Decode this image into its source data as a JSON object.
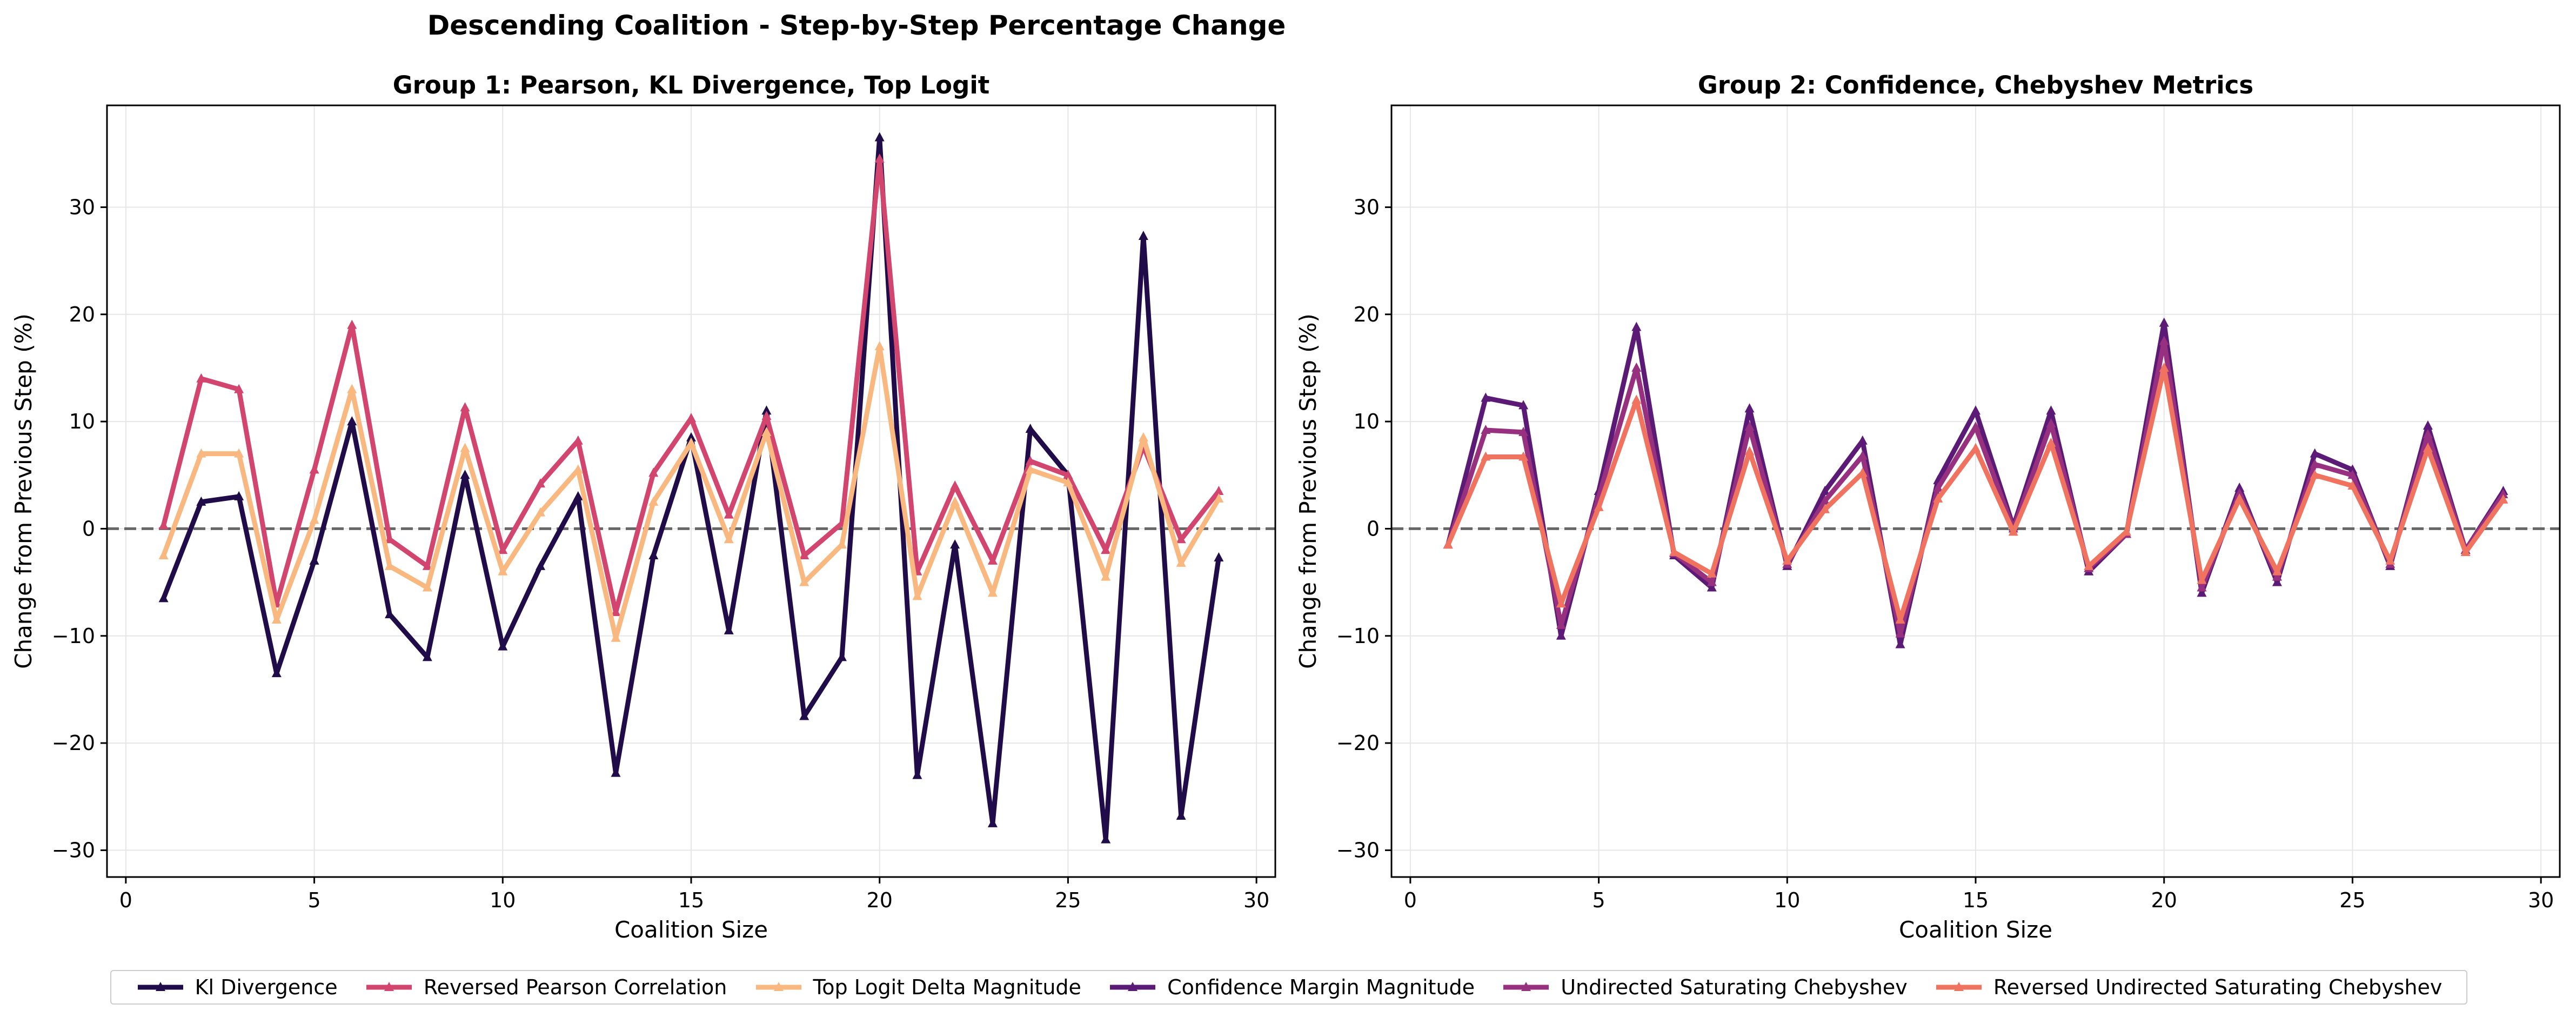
{
  "figure_title": "Descending Coalition - Step-by-Step Percentage Change",
  "colors": {
    "kl": "#1f0c48",
    "pearson": "#d1456f",
    "toplogit": "#f9b87f",
    "confidence": "#5b1a76",
    "undirected": "#97307f",
    "reversed_undirected": "#f0735f",
    "zero_line": "#666666",
    "grid": "#e6e6e6"
  },
  "legend": {
    "items": [
      {
        "label": "Kl Divergence",
        "color": "#1f0c48"
      },
      {
        "label": "Reversed Pearson Correlation",
        "color": "#d1456f"
      },
      {
        "label": "Top Logit Delta Magnitude",
        "color": "#f9b87f"
      },
      {
        "label": "Confidence Margin Magnitude",
        "color": "#5b1a76"
      },
      {
        "label": "Undirected Saturating Chebyshev",
        "color": "#97307f"
      },
      {
        "label": "Reversed Undirected Saturating Chebyshev",
        "color": "#f0735f"
      }
    ]
  },
  "chart_data": [
    {
      "type": "line",
      "title": "Group 1: Pearson, KL Divergence, Top Logit",
      "xlabel": "Coalition Size",
      "ylabel": "Change from Previous Step (%)",
      "xlim": [
        -0.5,
        30.5
      ],
      "ylim": [
        -32.5,
        39.5
      ],
      "xticks": [
        0,
        5,
        10,
        15,
        20,
        25,
        30
      ],
      "yticks": [
        -30,
        -20,
        -10,
        0,
        10,
        20,
        30
      ],
      "grid": true,
      "zero_line": 0,
      "x": [
        1,
        2,
        3,
        4,
        5,
        6,
        7,
        8,
        9,
        10,
        11,
        12,
        13,
        14,
        15,
        16,
        17,
        18,
        19,
        20,
        21,
        22,
        23,
        24,
        25,
        26,
        27,
        28,
        29
      ],
      "series": [
        {
          "name": "Kl Divergence",
          "color": "#1f0c48",
          "values": [
            -6.5,
            2.5,
            3,
            -13.5,
            -3,
            10,
            -8,
            -12,
            5,
            -11,
            -3.5,
            3,
            -22.8,
            -2.5,
            8.5,
            -9.5,
            11,
            -17.5,
            -12,
            36.5,
            -23,
            -1.5,
            -27.5,
            9.3,
            5,
            -29,
            27.3,
            -26.8,
            -2.7
          ]
        },
        {
          "name": "Reversed Pearson Correlation",
          "color": "#d1456f",
          "values": [
            0.3,
            14,
            13,
            -7,
            5.5,
            19,
            -1,
            -3.5,
            11.3,
            -2,
            4.2,
            8.2,
            -7.8,
            5.2,
            10.3,
            1.3,
            10.5,
            -2.5,
            0.5,
            34.5,
            -4,
            4,
            -3,
            6.3,
            5,
            -2,
            7.7,
            -1,
            3.5
          ]
        },
        {
          "name": "Top Logit Delta Magnitude",
          "color": "#f9b87f",
          "values": [
            -2.5,
            7,
            7,
            -8.5,
            0.8,
            13,
            -3.5,
            -5.5,
            7.5,
            -4,
            1.5,
            5.5,
            -10.2,
            2.5,
            8,
            -1,
            9,
            -5,
            -1.5,
            17,
            -6.3,
            2.5,
            -6,
            5.5,
            4.3,
            -4.5,
            8.5,
            -3.2,
            2.8
          ]
        }
      ]
    },
    {
      "type": "line",
      "title": "Group 2: Confidence, Chebyshev Metrics",
      "xlabel": "Coalition Size",
      "ylabel": "Change from Previous Step (%)",
      "xlim": [
        -0.5,
        30.5
      ],
      "ylim": [
        -32.5,
        39.5
      ],
      "xticks": [
        0,
        5,
        10,
        15,
        20,
        25,
        30
      ],
      "yticks": [
        -30,
        -20,
        -10,
        0,
        10,
        20,
        30
      ],
      "grid": true,
      "zero_line": 0,
      "x": [
        1,
        2,
        3,
        4,
        5,
        6,
        7,
        8,
        9,
        10,
        11,
        12,
        13,
        14,
        15,
        16,
        17,
        18,
        19,
        20,
        21,
        22,
        23,
        24,
        25,
        26,
        27,
        28,
        29
      ],
      "series": [
        {
          "name": "Confidence Margin Magnitude",
          "color": "#5b1a76",
          "values": [
            -1.5,
            12.2,
            11.5,
            -10,
            3.5,
            18.8,
            -2.5,
            -5.5,
            11.2,
            -3.5,
            3.5,
            8.2,
            -10.8,
            4.5,
            11,
            0.2,
            11,
            -4,
            -0.5,
            19.2,
            -6,
            3.8,
            -5,
            7,
            5.5,
            -3.5,
            9.6,
            -2,
            3.5
          ]
        },
        {
          "name": "Undirected Saturating Chebyshev",
          "color": "#97307f",
          "values": [
            -1.5,
            9.2,
            9,
            -9,
            3,
            15,
            -2.3,
            -5,
            9.5,
            -3.3,
            2.6,
            6.8,
            -9.8,
            3.8,
            9.5,
            0,
            9.8,
            -3.7,
            -0.5,
            17.5,
            -5.5,
            3.3,
            -4.5,
            6,
            5,
            -3.3,
            8.8,
            -2,
            3.2
          ]
        },
        {
          "name": "Reversed Undirected Saturating Chebyshev",
          "color": "#f0735f",
          "values": [
            -1.5,
            6.7,
            6.7,
            -7,
            2,
            12,
            -2.2,
            -4.2,
            7.2,
            -3,
            1.8,
            5.2,
            -8.5,
            2.8,
            7.5,
            -0.3,
            8,
            -3.5,
            -0.3,
            15,
            -4.8,
            2.8,
            -4,
            5,
            4,
            -3,
            7.5,
            -2.2,
            2.7
          ]
        }
      ]
    }
  ]
}
